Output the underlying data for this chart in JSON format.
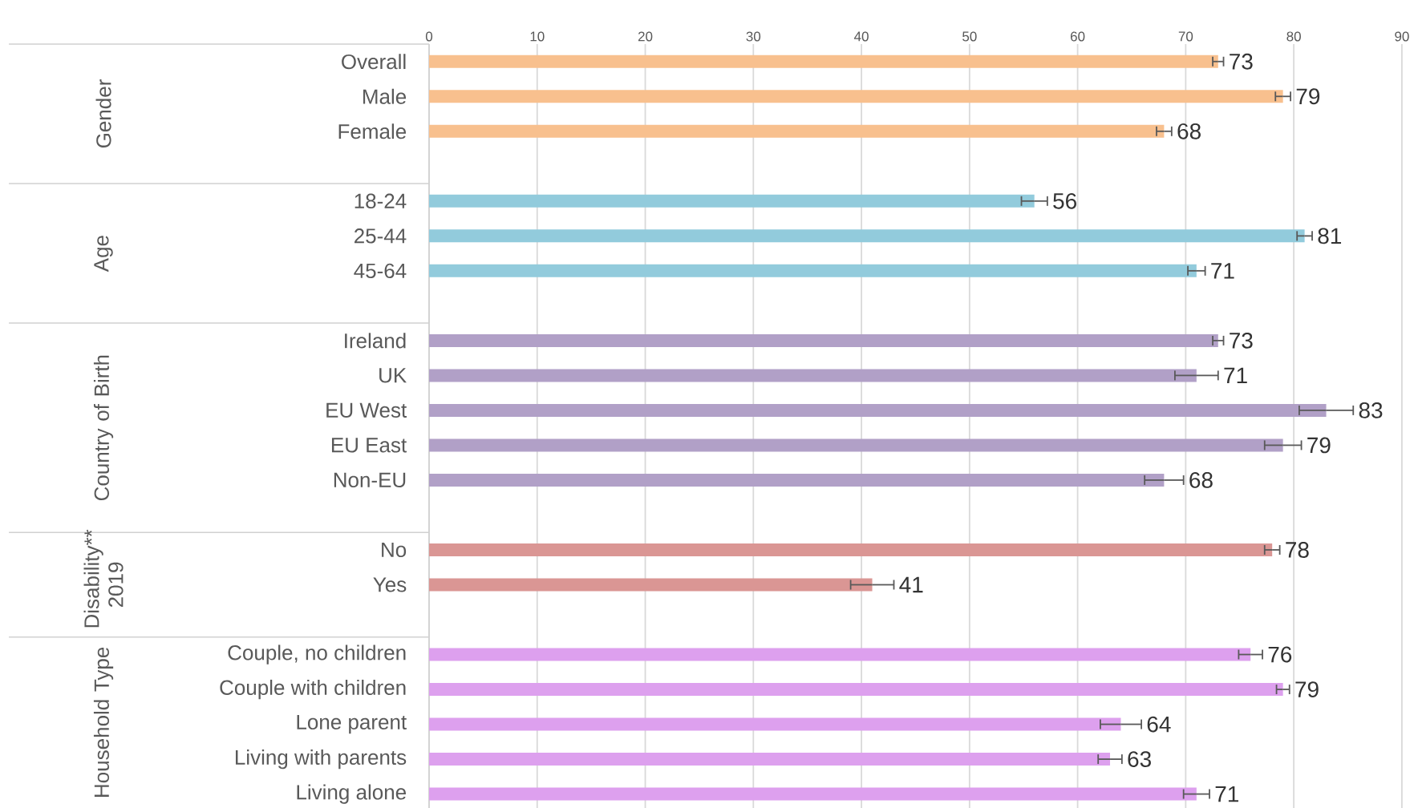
{
  "chart_data": {
    "type": "bar",
    "orientation": "horizontal",
    "categories": [
      "Overall",
      "Male",
      "Female",
      null,
      "18-24",
      "25-44",
      "45-64",
      null,
      "Ireland",
      "UK",
      "EU West",
      "EU East",
      "Non-EU",
      null,
      "No",
      "Yes",
      null,
      "Couple, no children",
      "Couple with children",
      "Lone parent",
      "Living with parents",
      "Living alone"
    ],
    "values": [
      73,
      79,
      68,
      null,
      56,
      81,
      71,
      null,
      73,
      71,
      83,
      79,
      68,
      null,
      78,
      41,
      null,
      76,
      79,
      64,
      63,
      71
    ],
    "errors": [
      0.5,
      0.7,
      0.7,
      null,
      1.2,
      0.7,
      0.8,
      null,
      0.5,
      2.0,
      2.5,
      1.7,
      1.8,
      null,
      0.7,
      2.0,
      null,
      1.1,
      0.6,
      1.9,
      1.1,
      1.2
    ],
    "colors": [
      "#f8c08e",
      "#f8c08e",
      "#f8c08e",
      null,
      "#92cbdc",
      "#92cbdc",
      "#92cbdc",
      null,
      "#b1a0c7",
      "#b1a0c7",
      "#b1a0c7",
      "#b1a0c7",
      "#b1a0c7",
      null,
      "#da9694",
      "#da9694",
      null,
      "#dda0ee",
      "#dda0ee",
      "#dda0ee",
      "#dda0ee",
      "#dda0ee"
    ],
    "data_labels": true,
    "annotations": [
      "Gender",
      "Age",
      "Country of Birth",
      "Disability** 2019",
      "Household Type"
    ],
    "xlim": [
      0,
      90
    ],
    "xticks": [
      0,
      10,
      20,
      30,
      40,
      50,
      60,
      70,
      80,
      90
    ],
    "grid": "x"
  }
}
